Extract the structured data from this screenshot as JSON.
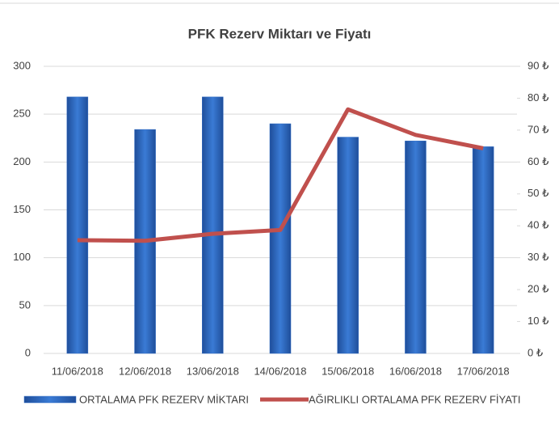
{
  "chart_data": {
    "type": "bar_line",
    "title": "PFK Rezerv Miktarı ve Fiyatı",
    "categories": [
      "11/06/2018",
      "12/06/2018",
      "13/06/2018",
      "14/06/2018",
      "15/06/2018",
      "16/06/2018",
      "17/06/2018"
    ],
    "series": [
      {
        "name": "ORTALAMA PFK REZERV MİKTARI",
        "type": "bar",
        "color": "#2f6bc4",
        "values": [
          268,
          234,
          268,
          240,
          226,
          222,
          216
        ]
      },
      {
        "name": "AĞIRLIKLI ORTALAMA PFK REZERV FİYATI",
        "type": "line",
        "axis": "y2",
        "color": "#c0504d",
        "values": [
          35.5,
          35.3,
          37.5,
          38.7,
          76.5,
          68.5,
          64.3
        ]
      }
    ],
    "ylim": [
      0,
      300
    ],
    "yticks": [
      0,
      50,
      100,
      150,
      200,
      250,
      300
    ],
    "y2lim": [
      0,
      90
    ],
    "y2ticks": [
      {
        "value": 0,
        "label": "0 ₺"
      },
      {
        "value": 10,
        "label": "10 ₺"
      },
      {
        "value": 20,
        "label": "20 ₺"
      },
      {
        "value": 30,
        "label": "30 ₺"
      },
      {
        "value": 40,
        "label": "40 ₺"
      },
      {
        "value": 50,
        "label": "50 ₺"
      },
      {
        "value": 60,
        "label": "60 ₺"
      },
      {
        "value": 70,
        "label": "70 ₺"
      },
      {
        "value": 80,
        "label": "80 ₺"
      },
      {
        "value": 90,
        "label": "90 ₺"
      }
    ],
    "grid": true,
    "legend": "bottom"
  }
}
